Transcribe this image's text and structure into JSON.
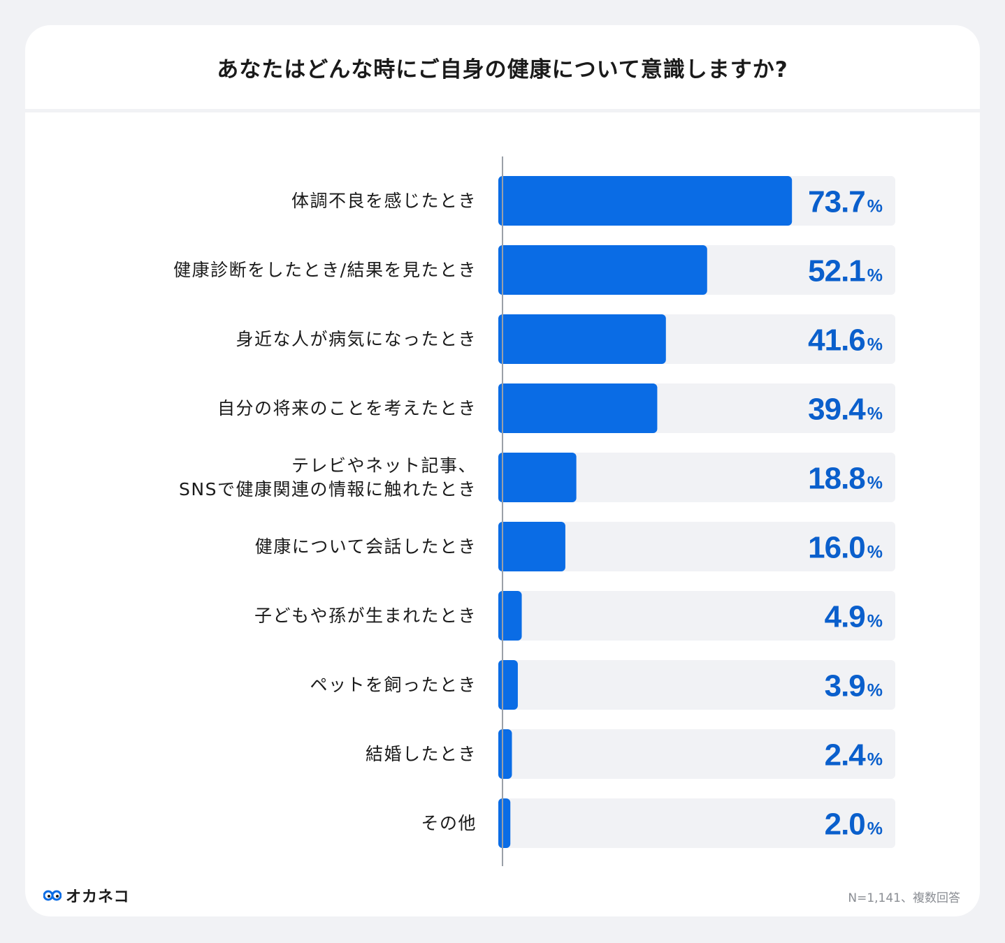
{
  "title": "あなたはどんな時にご自身の健康について意識しますか?",
  "brand": {
    "name": "オカネコ",
    "logo_icon": "owl-eyes-icon"
  },
  "note": "N=1,141、複数回答",
  "colors": {
    "bar": "#0a6ce5",
    "track": "#f1f2f5",
    "value": "#0a5fcc",
    "label": "#1a1a1a"
  },
  "chart_data": {
    "type": "bar",
    "orientation": "horizontal",
    "unit": "%",
    "xlim": [
      0,
      100
    ],
    "categories": [
      [
        "体調不良を感じたとき"
      ],
      [
        "健康診断をしたとき/結果を見たとき"
      ],
      [
        "身近な人が病気になったとき"
      ],
      [
        "自分の将来のことを考えたとき"
      ],
      [
        "テレビやネット記事、",
        "SNSで健康関連の情報に触れたとき"
      ],
      [
        "健康について会話したとき"
      ],
      [
        "子どもや孫が生まれたとき"
      ],
      [
        "ペットを飼ったとき"
      ],
      [
        "結婚したとき"
      ],
      [
        "その他"
      ]
    ],
    "values": [
      73.7,
      52.1,
      41.6,
      39.4,
      18.8,
      16.0,
      4.9,
      3.9,
      2.4,
      2.0
    ],
    "value_labels": [
      "73.7",
      "52.1",
      "41.6",
      "39.4",
      "18.8",
      "16.0",
      "4.9",
      "3.9",
      "2.4",
      "2.0"
    ]
  }
}
